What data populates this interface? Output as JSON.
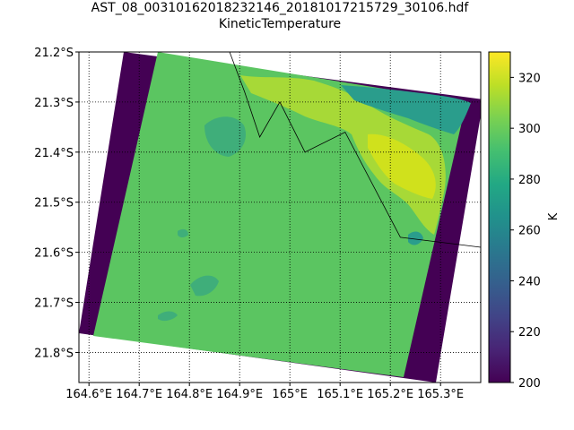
{
  "title": "AST_08_00310162018232146_20181017215729_30106.hdf",
  "subtitle": "KineticTemperature",
  "map": {
    "x_ticks": [
      "164.6°E",
      "164.7°E",
      "164.8°E",
      "164.9°E",
      "165°E",
      "165.1°E",
      "165.2°E",
      "165.3°E"
    ],
    "y_ticks": [
      "21.2°S",
      "21.3°S",
      "21.4°S",
      "21.5°S",
      "21.6°S",
      "21.7°S",
      "21.8°S"
    ],
    "x_range": [
      164.58,
      165.38
    ],
    "y_range": [
      -21.86,
      -21.2
    ],
    "grid": true,
    "gridline_style": "dotted",
    "coastline": [
      [
        164.88,
        -21.2
      ],
      [
        164.91,
        -21.28
      ],
      [
        164.94,
        -21.37
      ],
      [
        164.98,
        -21.3
      ],
      [
        165.03,
        -21.4
      ],
      [
        165.11,
        -21.36
      ],
      [
        165.22,
        -21.57
      ],
      [
        165.38,
        -21.59
      ]
    ]
  },
  "colorbar": {
    "label": "K",
    "ticks": [
      "200",
      "220",
      "240",
      "260",
      "280",
      "300",
      "320"
    ],
    "range": [
      200,
      330
    ],
    "colormap": "viridis"
  },
  "colors": {
    "background_scene": "#5bc561",
    "nodata_stripe": "#440154",
    "hot_yellow": "#b8de29",
    "cool_teal": "#2a9d8c"
  }
}
